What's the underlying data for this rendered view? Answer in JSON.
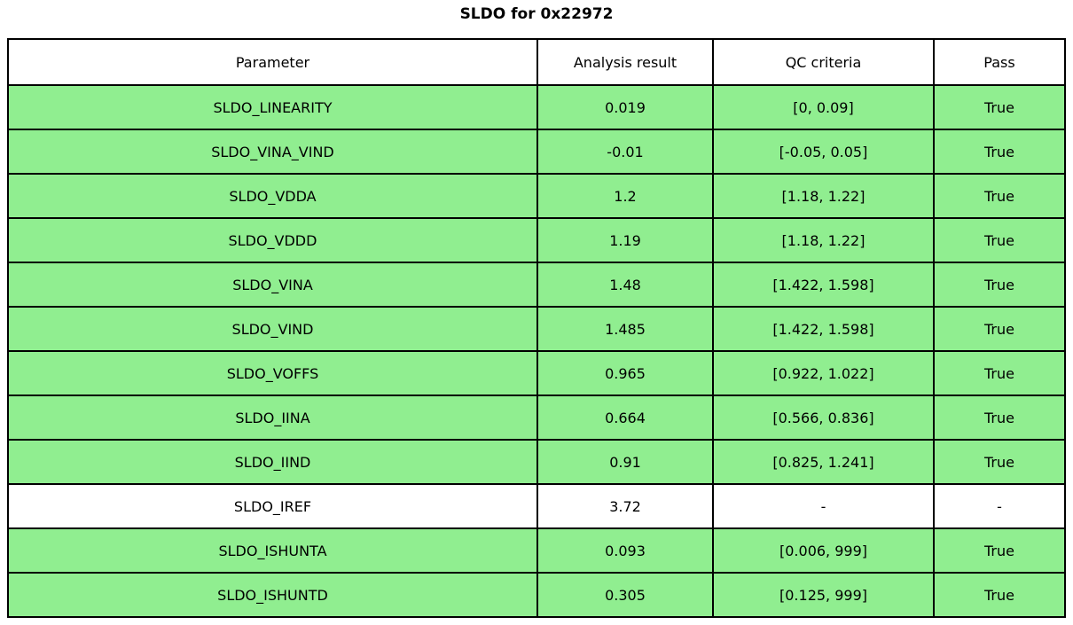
{
  "title": "SLDO for 0x22972",
  "colors": {
    "pass_row_bg": "#90ee90",
    "plain_row_bg": "#ffffff",
    "header_bg": "#ffffff",
    "border": "#000000",
    "text": "#000000"
  },
  "table": {
    "columns": [
      "Parameter",
      "Analysis result",
      "QC criteria",
      "Pass"
    ],
    "rows": [
      {
        "parameter": "SLDO_LINEARITY",
        "result": "0.019",
        "criteria": "[0, 0.09]",
        "pass": "True",
        "highlight": true
      },
      {
        "parameter": "SLDO_VINA_VIND",
        "result": "-0.01",
        "criteria": "[-0.05, 0.05]",
        "pass": "True",
        "highlight": true
      },
      {
        "parameter": "SLDO_VDDA",
        "result": "1.2",
        "criteria": "[1.18, 1.22]",
        "pass": "True",
        "highlight": true
      },
      {
        "parameter": "SLDO_VDDD",
        "result": "1.19",
        "criteria": "[1.18, 1.22]",
        "pass": "True",
        "highlight": true
      },
      {
        "parameter": "SLDO_VINA",
        "result": "1.48",
        "criteria": "[1.422, 1.598]",
        "pass": "True",
        "highlight": true
      },
      {
        "parameter": "SLDO_VIND",
        "result": "1.485",
        "criteria": "[1.422, 1.598]",
        "pass": "True",
        "highlight": true
      },
      {
        "parameter": "SLDO_VOFFS",
        "result": "0.965",
        "criteria": "[0.922, 1.022]",
        "pass": "True",
        "highlight": true
      },
      {
        "parameter": "SLDO_IINA",
        "result": "0.664",
        "criteria": "[0.566, 0.836]",
        "pass": "True",
        "highlight": true
      },
      {
        "parameter": "SLDO_IIND",
        "result": "0.91",
        "criteria": "[0.825, 1.241]",
        "pass": "True",
        "highlight": true
      },
      {
        "parameter": "SLDO_IREF",
        "result": "3.72",
        "criteria": "-",
        "pass": "-",
        "highlight": false
      },
      {
        "parameter": "SLDO_ISHUNTA",
        "result": "0.093",
        "criteria": "[0.006, 999]",
        "pass": "True",
        "highlight": true
      },
      {
        "parameter": "SLDO_ISHUNTD",
        "result": "0.305",
        "criteria": "[0.125, 999]",
        "pass": "True",
        "highlight": true
      }
    ]
  }
}
